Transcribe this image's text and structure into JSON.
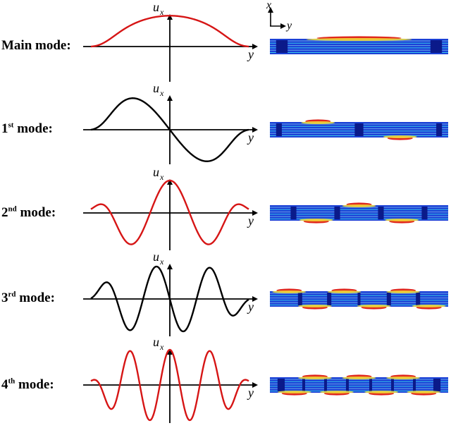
{
  "rows": [
    {
      "id": "main",
      "label_prefix": "Main mode",
      "label_sup": "",
      "label_suffix": ":",
      "color": "#d61515",
      "n": 0
    },
    {
      "id": "first",
      "label_prefix": "1",
      "label_sup": "st",
      "label_suffix": " mode:",
      "color": "#000000",
      "n": 1
    },
    {
      "id": "second",
      "label_prefix": "2",
      "label_sup": "nd",
      "label_suffix": " mode:",
      "color": "#d61515",
      "n": 2
    },
    {
      "id": "third",
      "label_prefix": "3",
      "label_sup": "rd",
      "label_suffix": " mode:",
      "color": "#000000",
      "n": 3
    },
    {
      "id": "fourth",
      "label_prefix": "4",
      "label_sup": "th",
      "label_suffix": " mode:",
      "color": "#d61515",
      "n": 4
    }
  ],
  "axes": {
    "vertical_main": "u",
    "vertical_sub": "x",
    "horizontal": "y"
  },
  "coord_axes": {
    "vertical": "x",
    "horizontal": "y"
  },
  "colors": {
    "red_curve": "#d61515",
    "black_curve": "#000000",
    "contour_blue": "#1a3fd6",
    "contour_dark": "#0b1a8a",
    "contour_cyan": "#39c6e8",
    "contour_yellow": "#f3e23a",
    "contour_red": "#e0281c"
  }
}
